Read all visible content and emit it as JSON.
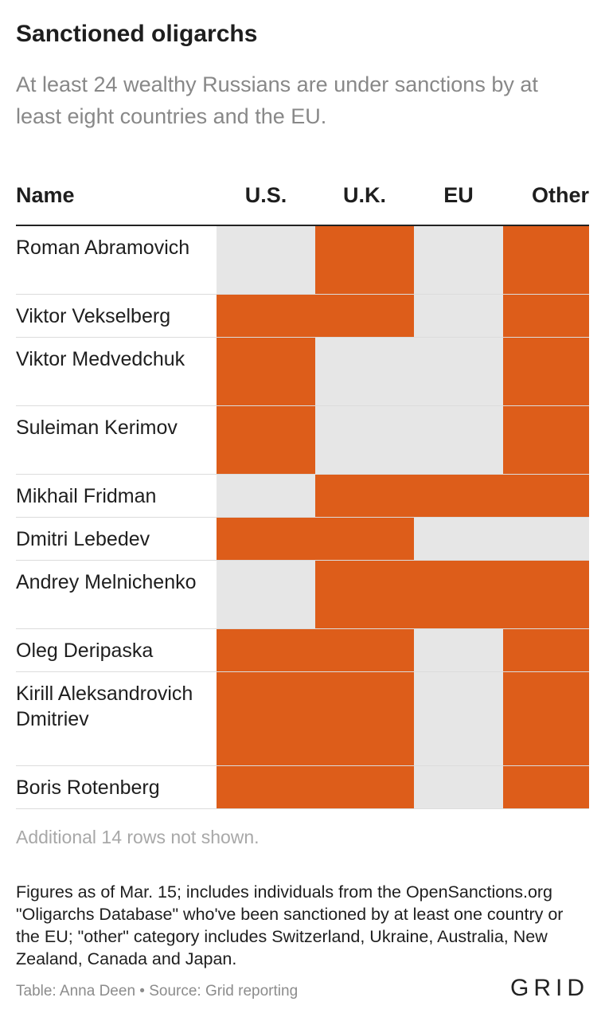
{
  "header": {
    "title": "Sanctioned oligarchs",
    "subtitle": "At least 24 wealthy Russians are under sanctions by at least eight countries and the EU."
  },
  "chart_data": {
    "type": "table",
    "columns": [
      "Name",
      "U.S.",
      "U.K.",
      "EU",
      "Other"
    ],
    "rows": [
      {
        "name": "Roman Abramovich",
        "us": false,
        "uk": true,
        "eu": false,
        "other": true
      },
      {
        "name": "Viktor Vekselberg",
        "us": true,
        "uk": true,
        "eu": false,
        "other": true
      },
      {
        "name": "Viktor Medvedchuk",
        "us": true,
        "uk": false,
        "eu": false,
        "other": true
      },
      {
        "name": "Suleiman Kerimov",
        "us": true,
        "uk": false,
        "eu": false,
        "other": true
      },
      {
        "name": "Mikhail Fridman",
        "us": false,
        "uk": true,
        "eu": true,
        "other": true
      },
      {
        "name": "Dmitri Lebedev",
        "us": true,
        "uk": true,
        "eu": false,
        "other": false
      },
      {
        "name": "Andrey Melnichenko",
        "us": false,
        "uk": true,
        "eu": true,
        "other": true
      },
      {
        "name": "Oleg Deripaska",
        "us": true,
        "uk": true,
        "eu": false,
        "other": true
      },
      {
        "name": "Kirill Aleksandrovich Dmitriev",
        "us": true,
        "uk": true,
        "eu": false,
        "other": true
      },
      {
        "name": "Boris Rotenberg",
        "us": true,
        "uk": true,
        "eu": false,
        "other": true
      }
    ],
    "colors": {
      "sanctioned": "#dd5d1a",
      "not_sanctioned": "#e6e6e6"
    }
  },
  "notes": {
    "rows_hidden": "Additional 14 rows not shown.",
    "footnote": "Figures as of Mar. 15; includes individuals from the OpenSanctions.org \"Oligarchs Database\" who've been sanctioned by at least one country or the EU; \"other\" category includes Switzerland, Ukraine, Australia, New Zealand, Canada and Japan.",
    "credit": "Table: Anna Deen • Source: Grid reporting",
    "logo": "GRID"
  }
}
